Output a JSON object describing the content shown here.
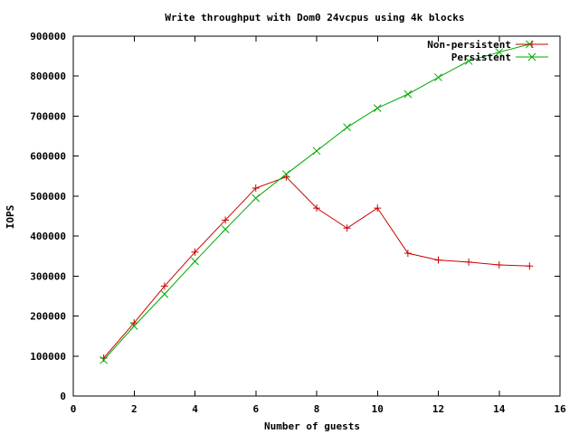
{
  "chart_data": {
    "type": "line",
    "title": "Write throughput with Dom0 24vcpus using 4k blocks",
    "xlabel": "Number of guests",
    "ylabel": "IOPS",
    "xlim": [
      0,
      16
    ],
    "ylim": [
      0,
      900000
    ],
    "xticks": [
      0,
      2,
      4,
      6,
      8,
      10,
      12,
      14,
      16
    ],
    "xtick_labels": [
      "0",
      "2",
      "4",
      "6",
      "8",
      "10",
      "12",
      "14",
      "16"
    ],
    "yticks": [
      0,
      100000,
      200000,
      300000,
      400000,
      500000,
      600000,
      700000,
      800000,
      900000
    ],
    "ytick_labels": [
      "0",
      "100000",
      "200000",
      "300000",
      "400000",
      "500000",
      "600000",
      "700000",
      "800000",
      "900000"
    ],
    "grid": false,
    "legend_position": "top-right",
    "series": [
      {
        "name": "Non-persistent",
        "color": "#cc0000",
        "marker": "plus",
        "x": [
          1,
          2,
          3,
          4,
          5,
          6,
          7,
          8,
          9,
          10,
          11,
          12,
          13,
          14,
          15
        ],
        "y": [
          95000,
          183000,
          275000,
          360000,
          440000,
          520000,
          548000,
          470000,
          420000,
          470000,
          357000,
          340000,
          335000,
          328000,
          325000
        ]
      },
      {
        "name": "Persistent",
        "color": "#00aa00",
        "marker": "cross",
        "x": [
          1,
          2,
          3,
          4,
          5,
          6,
          7,
          8,
          9,
          10,
          11,
          12,
          13,
          14,
          15
        ],
        "y": [
          90000,
          175000,
          255000,
          337000,
          417000,
          495000,
          555000,
          613000,
          672000,
          720000,
          755000,
          797000,
          838000,
          860000,
          880000
        ]
      }
    ]
  }
}
